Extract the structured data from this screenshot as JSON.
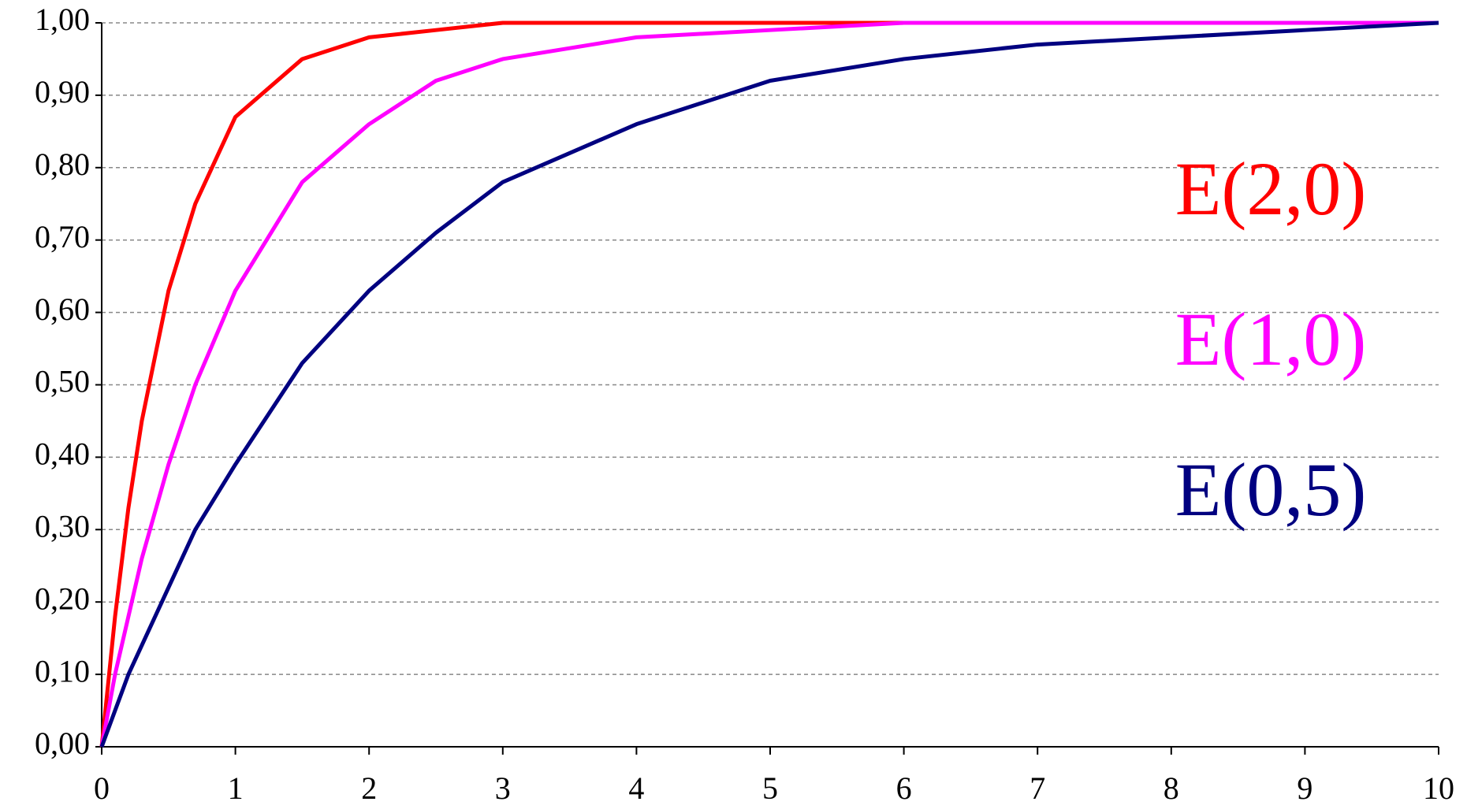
{
  "chart_data": {
    "type": "line",
    "x": [
      0,
      0.1,
      0.2,
      0.3,
      0.5,
      0.7,
      1,
      1.5,
      2,
      2.5,
      3,
      4,
      5,
      6,
      7,
      8,
      9,
      10
    ],
    "series": [
      {
        "name": "E(2,0)",
        "color": "#ff0000",
        "values": [
          0,
          0.18,
          0.33,
          0.45,
          0.63,
          0.75,
          0.87,
          0.95,
          0.98,
          0.99,
          1.0,
          1.0,
          1.0,
          1.0,
          1.0,
          1.0,
          1.0,
          1.0
        ]
      },
      {
        "name": "E(1,0)",
        "color": "#ff00ff",
        "values": [
          0,
          0.1,
          0.18,
          0.26,
          0.39,
          0.5,
          0.63,
          0.78,
          0.86,
          0.92,
          0.95,
          0.98,
          0.99,
          1.0,
          1.0,
          1.0,
          1.0,
          1.0
        ]
      },
      {
        "name": "E(0,5)",
        "color": "#000080",
        "values": [
          0,
          0.05,
          0.1,
          0.14,
          0.22,
          0.3,
          0.39,
          0.53,
          0.63,
          0.71,
          0.78,
          0.86,
          0.92,
          0.95,
          0.97,
          0.98,
          0.99,
          1.0
        ]
      }
    ],
    "xlim": [
      0,
      10
    ],
    "xticks": [
      0,
      1,
      2,
      3,
      4,
      5,
      6,
      7,
      8,
      9,
      10
    ],
    "ylim": [
      0,
      1
    ],
    "yticks": [
      {
        "value": 0,
        "label": "0,00"
      },
      {
        "value": 0.1,
        "label": "0,10"
      },
      {
        "value": 0.2,
        "label": "0,20"
      },
      {
        "value": 0.3,
        "label": "0,30"
      },
      {
        "value": 0.4,
        "label": "0,40"
      },
      {
        "value": 0.5,
        "label": "0,50"
      },
      {
        "value": 0.6,
        "label": "0,60"
      },
      {
        "value": 0.7,
        "label": "0,70"
      },
      {
        "value": 0.8,
        "label": "0,80"
      },
      {
        "value": 0.9,
        "label": "0,90"
      },
      {
        "value": 1,
        "label": "1,00"
      }
    ],
    "grid": true
  }
}
